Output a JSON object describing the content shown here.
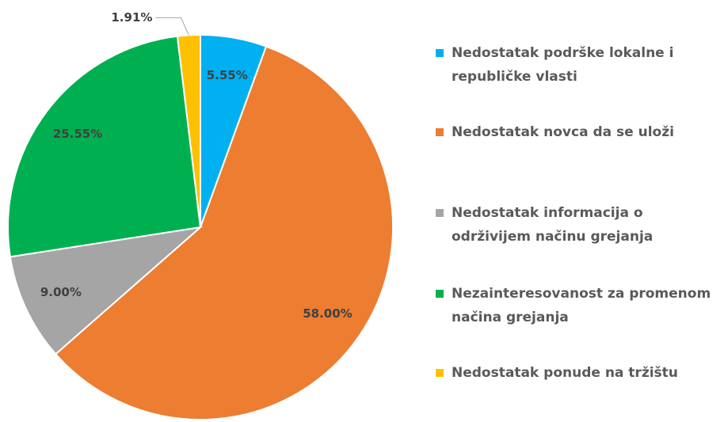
{
  "chart_data": {
    "type": "pie",
    "categories": [
      "Nedostatak podrške lokalne i republičke vlasti",
      "Nedostatak novca da se uloži",
      "Nedostatak informacija o održivijem načinu grejanja",
      "Nezainteresovanost za promenom načina grejanja",
      "Nedostatak ponude na tržištu"
    ],
    "values": [
      5.55,
      58.0,
      9.0,
      25.55,
      1.91
    ],
    "value_labels": [
      "5.55%",
      "58.00%",
      "9.00%",
      "25.55%",
      "1.91%"
    ],
    "colors": [
      "#00b0f0",
      "#ed7d31",
      "#a5a5a5",
      "#00b050",
      "#ffc000"
    ]
  }
}
